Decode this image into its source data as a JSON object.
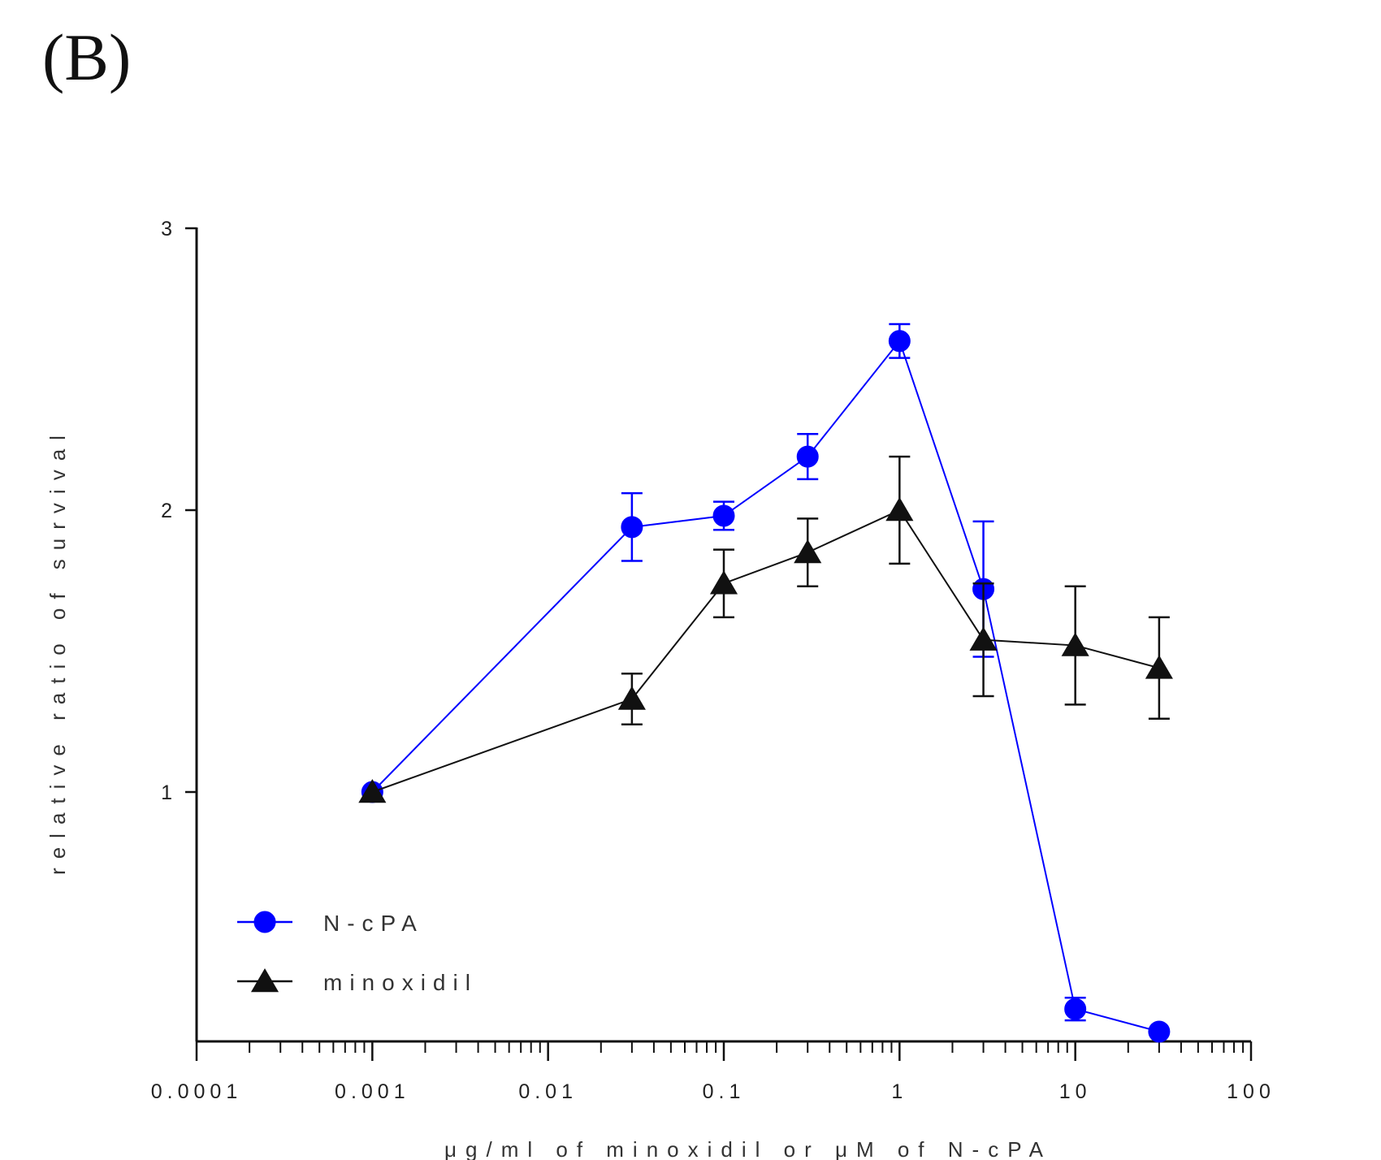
{
  "panel_label": "(B)",
  "chart_data": {
    "type": "line",
    "xlabel": "μg/ml of minoxidil or μM of N-cPA",
    "ylabel": "relative ratio of survival",
    "x_scale": "log",
    "xlim": [
      0.0001,
      100
    ],
    "ylim": [
      0.1,
      3
    ],
    "x_ticks": [
      0.0001,
      0.001,
      0.01,
      0.1,
      1,
      10,
      100
    ],
    "x_tick_labels": [
      "0.0001",
      "0.001",
      "0.01",
      "0.1",
      "1",
      "10",
      "100"
    ],
    "y_ticks": [
      1,
      2,
      3
    ],
    "y_tick_labels": [
      "1",
      "2",
      "3"
    ],
    "grid": false,
    "legend_position": "bottom-left",
    "series": [
      {
        "name": "N-cPA",
        "color": "#0000ff",
        "marker": "circle",
        "x": [
          0.001,
          0.03,
          0.1,
          0.3,
          1,
          3,
          10,
          30
        ],
        "y": [
          1.0,
          1.94,
          1.98,
          2.19,
          2.6,
          1.72,
          0.23,
          0.15
        ],
        "err": [
          0.0,
          0.12,
          0.05,
          0.08,
          0.06,
          0.24,
          0.04,
          0.0
        ]
      },
      {
        "name": "minoxidil",
        "color": "#111111",
        "marker": "triangle",
        "x": [
          0.001,
          0.03,
          0.1,
          0.3,
          1,
          3,
          10,
          30
        ],
        "y": [
          1.0,
          1.33,
          1.74,
          1.85,
          2.0,
          1.54,
          1.52,
          1.44
        ],
        "err": [
          0.0,
          0.09,
          0.12,
          0.12,
          0.19,
          0.2,
          0.21,
          0.18
        ]
      }
    ]
  }
}
